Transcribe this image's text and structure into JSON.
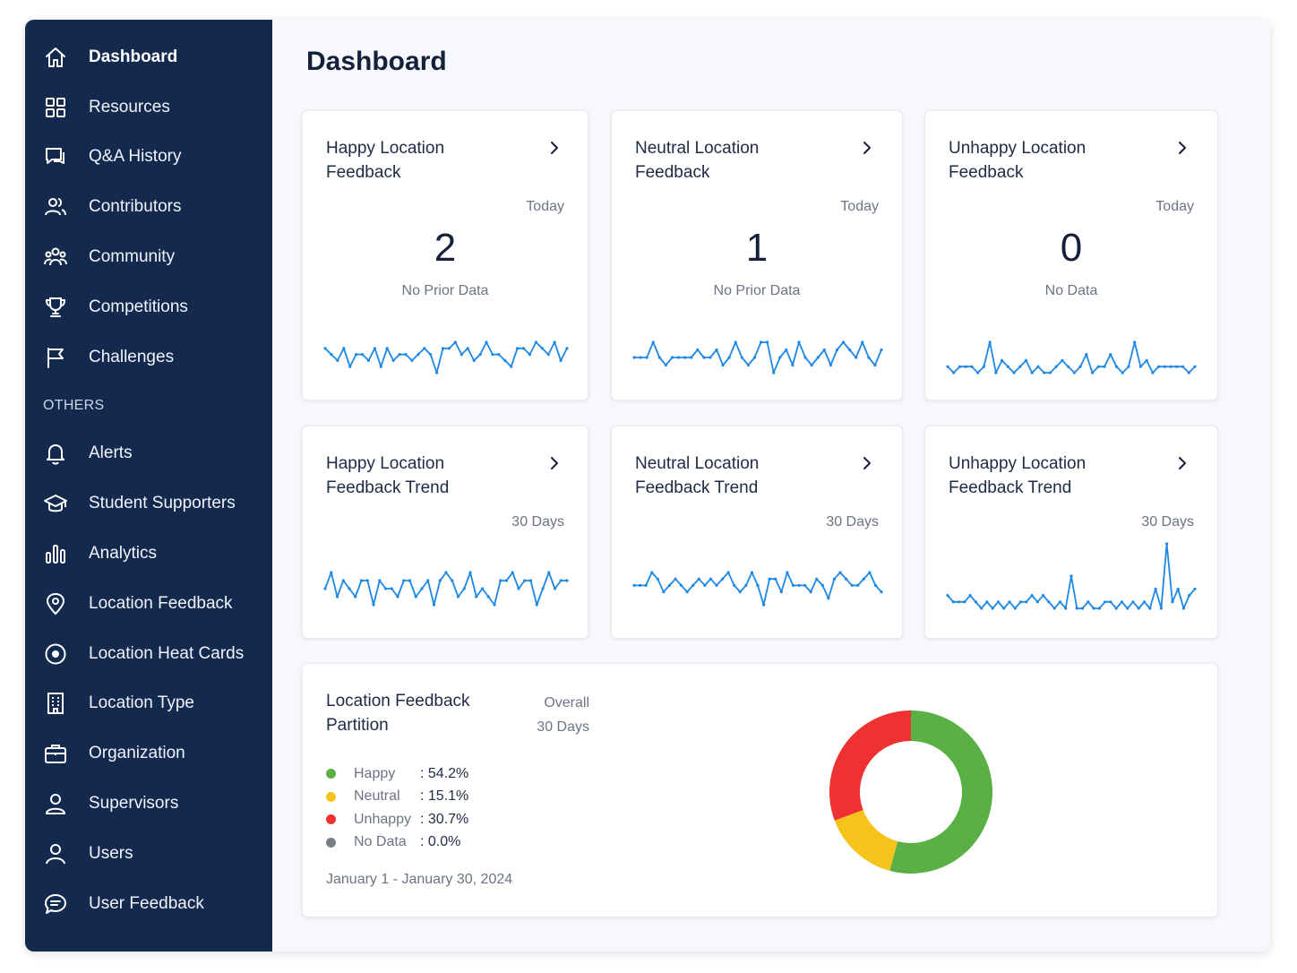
{
  "sidebar": {
    "items": [
      {
        "label": "Dashboard",
        "icon": "home-icon",
        "name": "sidebar-item-dashboard",
        "active": true
      },
      {
        "label": "Resources",
        "icon": "grid-icon",
        "name": "sidebar-item-resources"
      },
      {
        "label": "Q&A History",
        "icon": "chat-icon",
        "name": "sidebar-item-qa-history"
      },
      {
        "label": "Contributors",
        "icon": "users-icon",
        "name": "sidebar-item-contributors"
      },
      {
        "label": "Community",
        "icon": "community-icon",
        "name": "sidebar-item-community"
      },
      {
        "label": "Competitions",
        "icon": "trophy-icon",
        "name": "sidebar-item-competitions"
      },
      {
        "label": "Challenges",
        "icon": "flag-icon",
        "name": "sidebar-item-challenges"
      }
    ],
    "section_label": "OTHERS",
    "others": [
      {
        "label": "Alerts",
        "icon": "bell-icon",
        "name": "sidebar-item-alerts"
      },
      {
        "label": "Student Supporters",
        "icon": "graduation-cap-icon",
        "name": "sidebar-item-student-supporters"
      },
      {
        "label": "Analytics",
        "icon": "bar-chart-icon",
        "name": "sidebar-item-analytics"
      },
      {
        "label": "Location Feedback",
        "icon": "map-pin-icon",
        "name": "sidebar-item-location-feedback"
      },
      {
        "label": "Location Heat Cards",
        "icon": "target-icon",
        "name": "sidebar-item-location-heat-cards"
      },
      {
        "label": "Location Type",
        "icon": "building-icon",
        "name": "sidebar-item-location-type"
      },
      {
        "label": "Organization",
        "icon": "briefcase-icon",
        "name": "sidebar-item-organization"
      },
      {
        "label": "Supervisors",
        "icon": "user-icon",
        "name": "sidebar-item-supervisors"
      },
      {
        "label": "Users",
        "icon": "user-outline-icon",
        "name": "sidebar-item-users"
      },
      {
        "label": "User Feedback",
        "icon": "message-icon",
        "name": "sidebar-item-user-feedback"
      }
    ]
  },
  "main": {
    "title": "Dashboard",
    "today_cards": [
      {
        "title": "Happy Location Feedback",
        "period": "Today",
        "value": "2",
        "note": "No Prior Data"
      },
      {
        "title": "Neutral Location Feedback",
        "period": "Today",
        "value": "1",
        "note": "No Prior Data"
      },
      {
        "title": "Unhappy Location Feedback",
        "period": "Today",
        "value": "0",
        "note": "No Data"
      }
    ],
    "trend_cards": [
      {
        "title": "Happy Location Feedback Trend",
        "period": "30 Days"
      },
      {
        "title": "Neutral Location Feedback Trend",
        "period": "30 Days"
      },
      {
        "title": "Unhappy Location Feedback Trend",
        "period": "30 Days"
      }
    ],
    "partition": {
      "title": "Location Feedback Partition",
      "period_line1": "Overall",
      "period_line2": "30 Days",
      "date_range": "January 1 - January 30, 2024"
    }
  },
  "colors": {
    "sidebar_bg": "#13294d",
    "spark_line": "#1e88e5",
    "happy": "#5aaf45",
    "neutral": "#f5c31a",
    "unhappy": "#ee3232",
    "no_data": "#7a7f8c"
  },
  "chart_data": [
    {
      "type": "line",
      "name": "happy-today-sparkline",
      "values": [
        5,
        4,
        3,
        5,
        2,
        4,
        4,
        3,
        5,
        2,
        5,
        3,
        4,
        4,
        3,
        4,
        5,
        4,
        1,
        5,
        5,
        6,
        4,
        5,
        3,
        4,
        6,
        4,
        4,
        3,
        2,
        5,
        5,
        4,
        6,
        5,
        4,
        6,
        3,
        5
      ]
    },
    {
      "type": "line",
      "name": "neutral-today-sparkline",
      "values": [
        4,
        4,
        4,
        6,
        4,
        3,
        4,
        4,
        4,
        4,
        5,
        4,
        4,
        5,
        3,
        4,
        6,
        4,
        3,
        4,
        6,
        6,
        2,
        4,
        5,
        3,
        6,
        4,
        3,
        4,
        5,
        3,
        5,
        6,
        5,
        4,
        6,
        4,
        3,
        5
      ]
    },
    {
      "type": "line",
      "name": "unhappy-today-sparkline",
      "values": [
        4,
        3,
        4,
        4,
        4,
        3,
        4,
        8,
        3,
        5,
        4,
        3,
        4,
        5,
        3,
        4,
        3,
        3,
        4,
        5,
        4,
        3,
        4,
        6,
        3,
        4,
        4,
        6,
        4,
        3,
        4,
        8,
        4,
        5,
        3,
        4,
        4,
        4,
        4,
        4,
        3,
        4
      ]
    },
    {
      "type": "line",
      "name": "happy-trend-sparkline",
      "values": [
        4,
        6,
        3,
        5,
        4,
        3,
        5,
        5,
        2,
        5,
        4,
        4,
        3,
        5,
        5,
        3,
        4,
        5,
        2,
        5,
        6,
        5,
        3,
        4,
        6,
        3,
        4,
        3,
        2,
        5,
        5,
        6,
        4,
        5,
        5,
        2,
        4,
        6,
        4,
        5,
        5
      ]
    },
    {
      "type": "line",
      "name": "neutral-trend-sparkline",
      "values": [
        4,
        4,
        4,
        6,
        5,
        3,
        4,
        5,
        4,
        3,
        4,
        5,
        4,
        5,
        4,
        5,
        6,
        4,
        3,
        4,
        6,
        4,
        1,
        5,
        5,
        3,
        6,
        4,
        4,
        4,
        3,
        5,
        4,
        2,
        5,
        6,
        5,
        4,
        4,
        5,
        6,
        4,
        3
      ]
    },
    {
      "type": "line",
      "name": "unhappy-trend-sparkline",
      "values": [
        3,
        2,
        2,
        2,
        3,
        2,
        1,
        2,
        1,
        2,
        1,
        2,
        1,
        2,
        2,
        3,
        2,
        3,
        2,
        1,
        2,
        1,
        6,
        1,
        1,
        2,
        1,
        1,
        2,
        2,
        1,
        2,
        1,
        2,
        1,
        2,
        1,
        4,
        1,
        11,
        2,
        4,
        1,
        3,
        4
      ]
    },
    {
      "type": "pie",
      "name": "location-feedback-partition",
      "categories": [
        "Happy",
        "Neutral",
        "Unhappy",
        "No Data"
      ],
      "values": [
        54.2,
        15.1,
        30.7,
        0.0
      ],
      "labels": [
        ": 54.2%",
        ": 15.1%",
        ": 30.7%",
        ": 0.0%"
      ]
    }
  ]
}
